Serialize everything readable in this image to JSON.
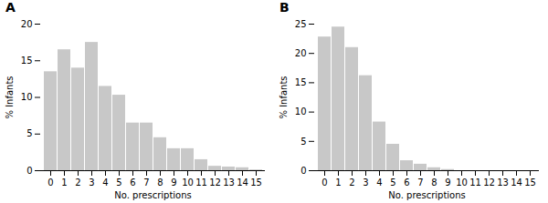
{
  "chart_data": [
    {
      "type": "bar",
      "title": "A",
      "categories": [
        "0",
        "1",
        "2",
        "3",
        "4",
        "5",
        "6",
        "7",
        "8",
        "9",
        "10",
        "11",
        "12",
        "13",
        "14",
        "15"
      ],
      "values": [
        13.5,
        16.5,
        14.0,
        17.5,
        11.5,
        10.3,
        6.5,
        6.5,
        4.5,
        3.0,
        3.0,
        1.5,
        0.6,
        0.5,
        0.4,
        0.1
      ],
      "color": "#c8c8c8",
      "ylim": [
        0,
        20
      ],
      "yticks": [
        0,
        5,
        10,
        15,
        20
      ],
      "ylabel": "% Infants",
      "xlabel": "No. prescriptions"
    },
    {
      "type": "bar",
      "title": "B",
      "categories": [
        "0",
        "1",
        "2",
        "3",
        "4",
        "5",
        "6",
        "7",
        "8",
        "9",
        "10",
        "11",
        "12",
        "13",
        "14",
        "15"
      ],
      "values": [
        22.8,
        24.5,
        21.0,
        16.2,
        8.3,
        4.5,
        1.7,
        1.1,
        0.5,
        0.2,
        0.0,
        0.0,
        0.0,
        0.0,
        0.0,
        0.0
      ],
      "color": "#c8c8c8",
      "ylim": [
        0,
        25
      ],
      "yticks": [
        0,
        5,
        10,
        15,
        20,
        25
      ],
      "ylabel": "% Infants",
      "xlabel": "No. prescriptions"
    }
  ]
}
